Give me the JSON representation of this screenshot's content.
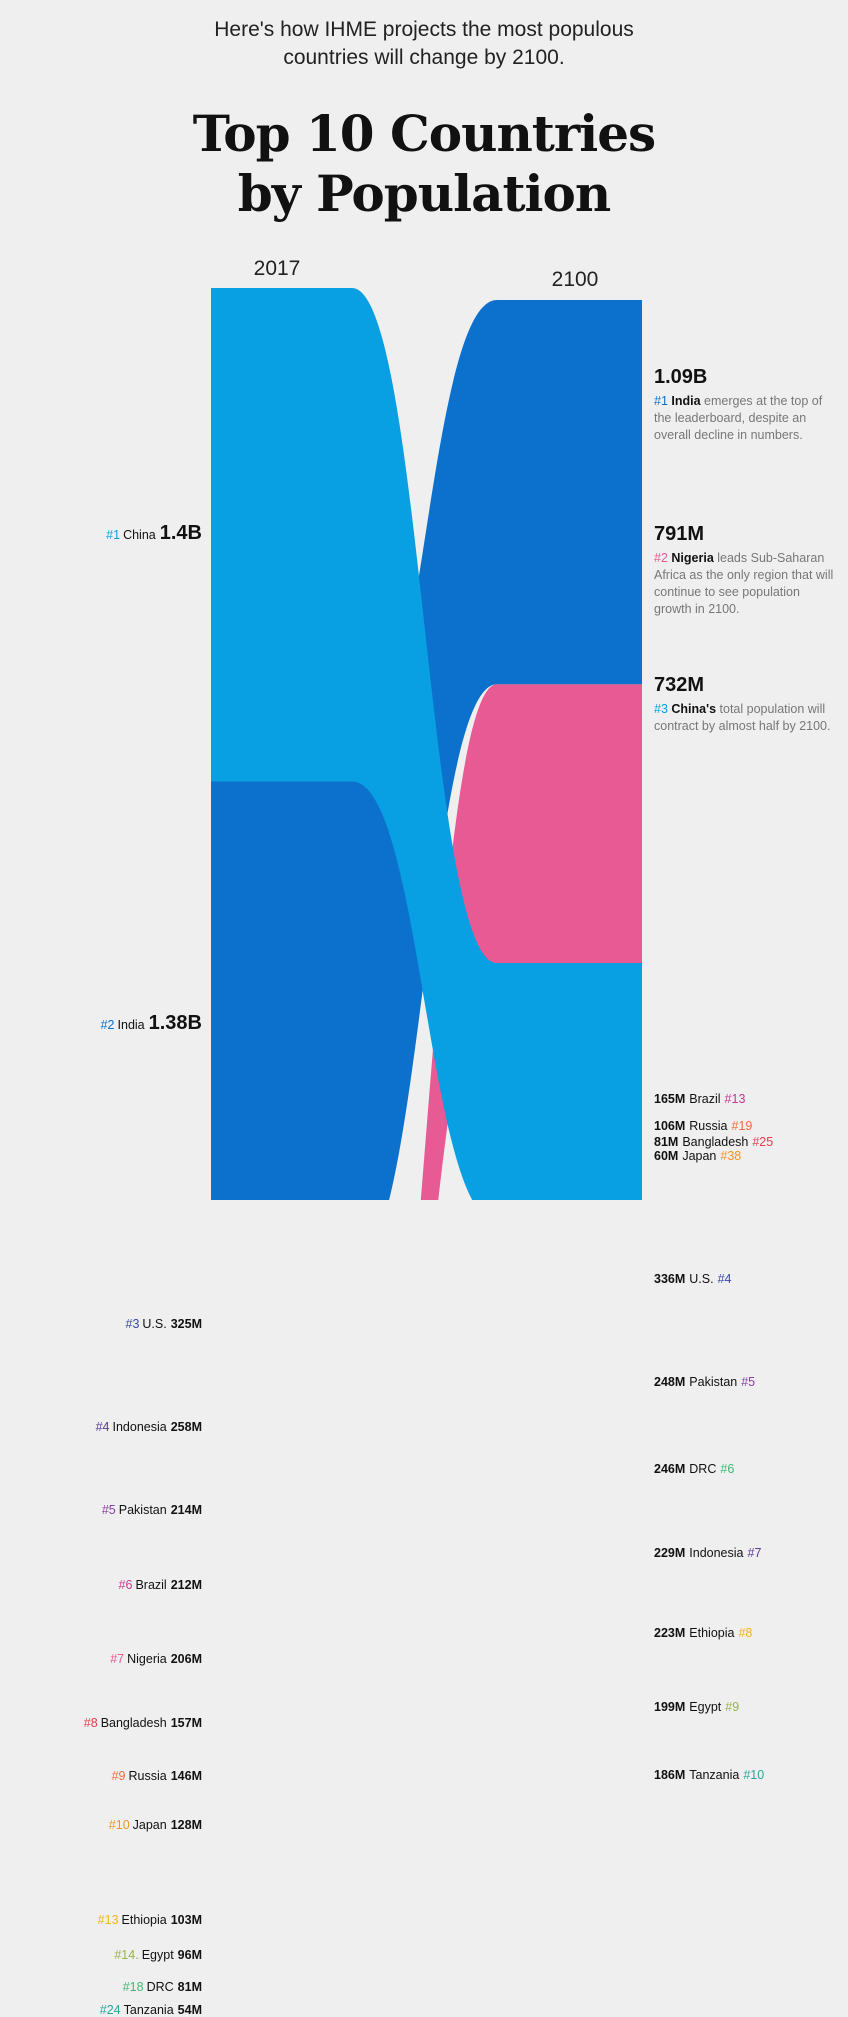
{
  "header": {
    "subtitle_line1": "Here's how IHME projects the most populous",
    "subtitle_line2": "countries will change by 2100.",
    "title_line1": "Top 10 Countries",
    "title_line2": "by Population"
  },
  "chart_data": {
    "type": "sankey",
    "title": "Top 10 Countries by Population",
    "years": [
      "2017",
      "2100"
    ],
    "unit": "millions",
    "countries": [
      {
        "name": "China",
        "color": "#089FE3",
        "rank2017": "#1",
        "pop2017": 1400,
        "label2017": "1.4B",
        "rank2100": "#3",
        "pop2100": 732,
        "label2100": "732M"
      },
      {
        "name": "India",
        "color": "#0C71CC",
        "rank2017": "#2",
        "pop2017": 1380,
        "label2017": "1.38B",
        "rank2100": "#1",
        "pop2100": 1090,
        "label2100": "1.09B"
      },
      {
        "name": "U.S.",
        "color": "#3A49A8",
        "rank2017": "#3",
        "pop2017": 325,
        "label2017": "325M",
        "rank2100": "#4",
        "pop2100": 336,
        "label2100": "336M"
      },
      {
        "name": "Indonesia",
        "color": "#5B3A9B",
        "rank2017": "#4",
        "pop2017": 258,
        "label2017": "258M",
        "rank2100": "#7",
        "pop2100": 229,
        "label2100": "229M"
      },
      {
        "name": "Pakistan",
        "color": "#863F9F",
        "rank2017": "#5",
        "pop2017": 214,
        "label2017": "214M",
        "rank2100": "#5",
        "pop2100": 248,
        "label2100": "248M"
      },
      {
        "name": "Brazil",
        "color": "#C2398F",
        "rank2017": "#6",
        "pop2017": 212,
        "label2017": "212M",
        "rank2100": "#13",
        "pop2100": 165,
        "label2100": "165M"
      },
      {
        "name": "Nigeria",
        "color": "#E85A93",
        "rank2017": "#7",
        "pop2017": 206,
        "label2017": "206M",
        "rank2100": "#2",
        "pop2100": 791,
        "label2100": "791M"
      },
      {
        "name": "Bangladesh",
        "color": "#E63A4E",
        "rank2017": "#8",
        "pop2017": 157,
        "label2017": "157M",
        "rank2100": "#25",
        "pop2100": 81,
        "label2100": "81M"
      },
      {
        "name": "Russia",
        "color": "#F6693C",
        "rank2017": "#9",
        "pop2017": 146,
        "label2017": "146M",
        "rank2100": "#19",
        "pop2100": 106,
        "label2100": "106M"
      },
      {
        "name": "Japan",
        "color": "#F39322",
        "rank2017": "#10",
        "pop2017": 128,
        "label2017": "128M",
        "rank2100": "#38",
        "pop2100": 60,
        "label2100": "60M"
      },
      {
        "name": "Ethiopia",
        "color": "#F2B51C",
        "rank2017": "#13",
        "pop2017": 103,
        "label2017": "103M",
        "rank2100": "#8",
        "pop2100": 223,
        "label2100": "223M"
      },
      {
        "name": "Egypt",
        "color": "#97B447",
        "rank2017": "#14.",
        "pop2017": 96,
        "label2017": "96M",
        "rank2100": "#9",
        "pop2100": 199,
        "label2100": "199M"
      },
      {
        "name": "DRC",
        "color": "#3DB876",
        "rank2017": "#18",
        "pop2017": 81,
        "label2017": "81M",
        "rank2100": "#6",
        "pop2100": 246,
        "label2100": "246M"
      },
      {
        "name": "Tanzania",
        "color": "#25A89A",
        "rank2017": "#24",
        "pop2017": 54,
        "label2017": "54M",
        "rank2100": "#10",
        "pop2100": 186,
        "label2100": "186M"
      }
    ],
    "callouts": [
      {
        "value": "1.09B",
        "rank": "#1",
        "name": "India",
        "text": " emerges at the top of the leaderboard, despite an overall decline in numbers."
      },
      {
        "value": "791M",
        "rank": "#2",
        "name": "Nigeria",
        "text": " leads Sub-Saharan Africa as the only region that will continue to see population growth in 2100."
      },
      {
        "value": "732M",
        "rank": "#3",
        "name": "China's",
        "text": " total population will contract by almost half by 2100."
      }
    ]
  }
}
